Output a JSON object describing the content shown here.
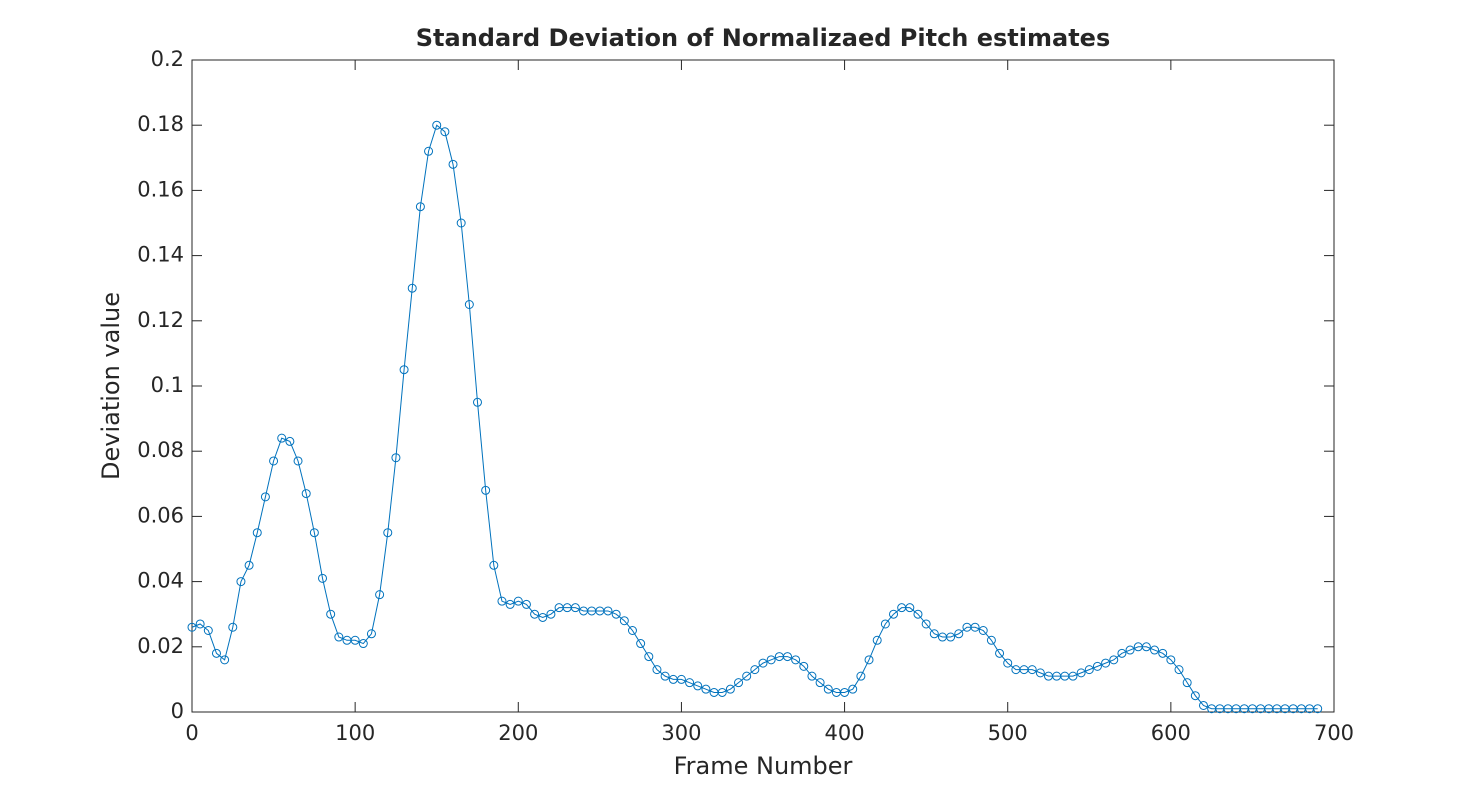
{
  "chart_data": {
    "type": "line",
    "title": "Standard Deviation of Normalizaed Pitch estimates",
    "x_label": "Frame Number",
    "y_label": "Deviation value",
    "xlim": [
      0,
      700
    ],
    "xticks": [
      0,
      100,
      200,
      300,
      400,
      500,
      600,
      700
    ],
    "ylim": [
      0,
      0.2
    ],
    "yticks": [
      0,
      0.02,
      0.04,
      0.06,
      0.08,
      0.1,
      0.12,
      0.14,
      0.16,
      0.18,
      0.2
    ],
    "marker": "circle",
    "series": [
      {
        "color": "#0072bd",
        "x": [
          0,
          5,
          10,
          15,
          20,
          25,
          30,
          35,
          40,
          45,
          50,
          55,
          60,
          65,
          70,
          75,
          80,
          85,
          90,
          95,
          100,
          105,
          110,
          115,
          120,
          125,
          130,
          135,
          140,
          145,
          150,
          155,
          160,
          165,
          170,
          175,
          180,
          185,
          190,
          195,
          200,
          205,
          210,
          215,
          220,
          225,
          230,
          235,
          240,
          245,
          250,
          255,
          260,
          265,
          270,
          275,
          280,
          285,
          290,
          295,
          300,
          305,
          310,
          315,
          320,
          325,
          330,
          335,
          340,
          345,
          350,
          355,
          360,
          365,
          370,
          375,
          380,
          385,
          390,
          395,
          400,
          405,
          410,
          415,
          420,
          425,
          430,
          435,
          440,
          445,
          450,
          455,
          460,
          465,
          470,
          475,
          480,
          485,
          490,
          495,
          500,
          505,
          510,
          515,
          520,
          525,
          530,
          535,
          540,
          545,
          550,
          555,
          560,
          565,
          570,
          575,
          580,
          585,
          590,
          595,
          600,
          605,
          610,
          615,
          620,
          625,
          630,
          635,
          640,
          645,
          650,
          655,
          660,
          665,
          670,
          675,
          680,
          685,
          690
        ],
        "values": [
          0.026,
          0.027,
          0.025,
          0.018,
          0.016,
          0.026,
          0.04,
          0.045,
          0.055,
          0.066,
          0.077,
          0.084,
          0.083,
          0.077,
          0.067,
          0.055,
          0.041,
          0.03,
          0.023,
          0.022,
          0.022,
          0.021,
          0.024,
          0.036,
          0.055,
          0.078,
          0.105,
          0.13,
          0.155,
          0.172,
          0.18,
          0.178,
          0.168,
          0.15,
          0.125,
          0.095,
          0.068,
          0.045,
          0.034,
          0.033,
          0.034,
          0.033,
          0.03,
          0.029,
          0.03,
          0.032,
          0.032,
          0.032,
          0.031,
          0.031,
          0.031,
          0.031,
          0.03,
          0.028,
          0.025,
          0.021,
          0.017,
          0.013,
          0.011,
          0.01,
          0.01,
          0.009,
          0.008,
          0.007,
          0.006,
          0.006,
          0.007,
          0.009,
          0.011,
          0.013,
          0.015,
          0.016,
          0.017,
          0.017,
          0.016,
          0.014,
          0.011,
          0.009,
          0.007,
          0.006,
          0.006,
          0.007,
          0.011,
          0.016,
          0.022,
          0.027,
          0.03,
          0.032,
          0.032,
          0.03,
          0.027,
          0.024,
          0.023,
          0.023,
          0.024,
          0.026,
          0.026,
          0.025,
          0.022,
          0.018,
          0.015,
          0.013,
          0.013,
          0.013,
          0.012,
          0.011,
          0.011,
          0.011,
          0.011,
          0.012,
          0.013,
          0.014,
          0.015,
          0.016,
          0.018,
          0.019,
          0.02,
          0.02,
          0.019,
          0.018,
          0.016,
          0.013,
          0.009,
          0.005,
          0.002,
          0.001,
          0.001,
          0.001,
          0.001,
          0.001,
          0.001,
          0.001,
          0.001,
          0.001,
          0.001,
          0.001,
          0.001,
          0.001,
          0.001
        ]
      }
    ]
  }
}
